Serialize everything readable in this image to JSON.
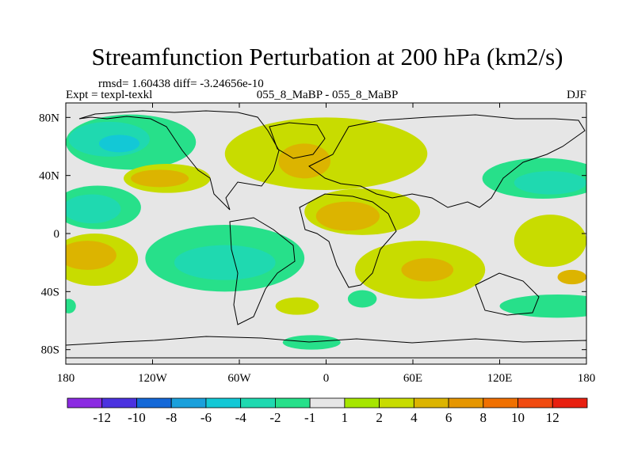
{
  "chart_data": {
    "type": "heatmap",
    "title": "Streamfunction Perturbation at 200 hPa (km2/s)",
    "stats_text": "rmsd= 1.60438 diff= -3.24656e-10",
    "left_label": "Expt = texpl-texkl",
    "center_label": "055_8_MaBP - 055_8_MaBP",
    "right_label": "DJF",
    "x_ticks": [
      "180",
      "120W",
      "60W",
      "0",
      "60E",
      "120E",
      "180"
    ],
    "x_tick_values": [
      -180,
      -120,
      -60,
      0,
      60,
      120,
      180
    ],
    "y_ticks": [
      "80N",
      "40N",
      "0",
      "40S",
      "80S"
    ],
    "y_tick_values": [
      80,
      40,
      0,
      -40,
      -80
    ],
    "xlim": [
      -180,
      180
    ],
    "ylim": [
      -90,
      90
    ],
    "colorbar": {
      "labels": [
        "-12",
        "-10",
        "-8",
        "-6",
        "-4",
        "-2",
        "-1",
        "1",
        "2",
        "4",
        "6",
        "8",
        "10",
        "12"
      ],
      "colors": [
        "#8b2be2",
        "#4b32e0",
        "#1468d8",
        "#1aa0dc",
        "#13c8d6",
        "#1fd9b0",
        "#27e08a",
        "#e6e6e6",
        "#a6e600",
        "#c8dc00",
        "#dcb400",
        "#e69600",
        "#f07000",
        "#f04a10",
        "#e82010"
      ]
    },
    "contour_fills": [
      {
        "name": "npac-neg",
        "level": -4,
        "cx": -150,
        "cy": 65,
        "rx": 28,
        "ry": 12
      },
      {
        "name": "npac-neg-core",
        "level": -6,
        "cx": -143,
        "cy": 62,
        "rx": 14,
        "ry": 6
      },
      {
        "name": "npac-neg-outer",
        "level": -2,
        "cx": -135,
        "cy": 63,
        "rx": 45,
        "ry": 19
      },
      {
        "name": "sa-neg",
        "level": -4,
        "cx": -70,
        "cy": -20,
        "rx": 35,
        "ry": 12
      },
      {
        "name": "sa-neg-outer",
        "level": -2,
        "cx": -70,
        "cy": -17,
        "rx": 55,
        "ry": 23
      },
      {
        "name": "epac-neg",
        "level": -4,
        "cx": -162,
        "cy": 17,
        "rx": 20,
        "ry": 10
      },
      {
        "name": "epac-neg-outer",
        "level": -2,
        "cx": -158,
        "cy": 18,
        "rx": 30,
        "ry": 15
      },
      {
        "name": "wpac-neg",
        "level": -4,
        "cx": 155,
        "cy": 35,
        "rx": 25,
        "ry": 8
      },
      {
        "name": "wpac-neg-outer",
        "level": -2,
        "cx": 150,
        "cy": 38,
        "rx": 42,
        "ry": 14
      },
      {
        "name": "eurasia-pos",
        "level": 4,
        "cx": -15,
        "cy": 50,
        "rx": 18,
        "ry": 12
      },
      {
        "name": "eurasia-pos-outer",
        "level": 2,
        "cx": 0,
        "cy": 55,
        "rx": 70,
        "ry": 25
      },
      {
        "name": "africa-pos",
        "level": 4,
        "cx": 15,
        "cy": 12,
        "rx": 22,
        "ry": 10
      },
      {
        "name": "africa-pos-outer",
        "level": 2,
        "cx": 25,
        "cy": 15,
        "rx": 40,
        "ry": 16
      },
      {
        "name": "spac-pos",
        "level": 4,
        "cx": -165,
        "cy": -15,
        "rx": 20,
        "ry": 10
      },
      {
        "name": "spac-pos-outer",
        "level": 2,
        "cx": -160,
        "cy": -18,
        "rx": 30,
        "ry": 18
      },
      {
        "name": "io-pos",
        "level": 4,
        "cx": 70,
        "cy": -25,
        "rx": 18,
        "ry": 8
      },
      {
        "name": "io-pos-outer",
        "level": 2,
        "cx": 65,
        "cy": -25,
        "rx": 45,
        "ry": 20
      },
      {
        "name": "sio-pos",
        "level": 2,
        "cx": -20,
        "cy": -50,
        "rx": 15,
        "ry": 6
      },
      {
        "name": "npac-pos",
        "level": 4,
        "cx": -115,
        "cy": 38,
        "rx": 20,
        "ry": 6
      },
      {
        "name": "npac-pos-outer",
        "level": 2,
        "cx": -110,
        "cy": 38,
        "rx": 30,
        "ry": 10
      },
      {
        "name": "aus-pos",
        "level": 2,
        "cx": 155,
        "cy": -5,
        "rx": 25,
        "ry": 18
      },
      {
        "name": "aus-pos-inner",
        "level": 4,
        "cx": 170,
        "cy": -30,
        "rx": 10,
        "ry": 5
      },
      {
        "name": "sam-neg-small",
        "level": -2,
        "cx": 25,
        "cy": -45,
        "rx": 10,
        "ry": 6
      },
      {
        "name": "spac-neg",
        "level": -2,
        "cx": 160,
        "cy": -50,
        "rx": 40,
        "ry": 8
      },
      {
        "name": "ant-neg",
        "level": -2,
        "cx": -10,
        "cy": -75,
        "rx": 20,
        "ry": 5
      },
      {
        "name": "w-neg-edge",
        "level": -2,
        "cx": -178,
        "cy": -50,
        "rx": 5,
        "ry": 5
      }
    ]
  }
}
